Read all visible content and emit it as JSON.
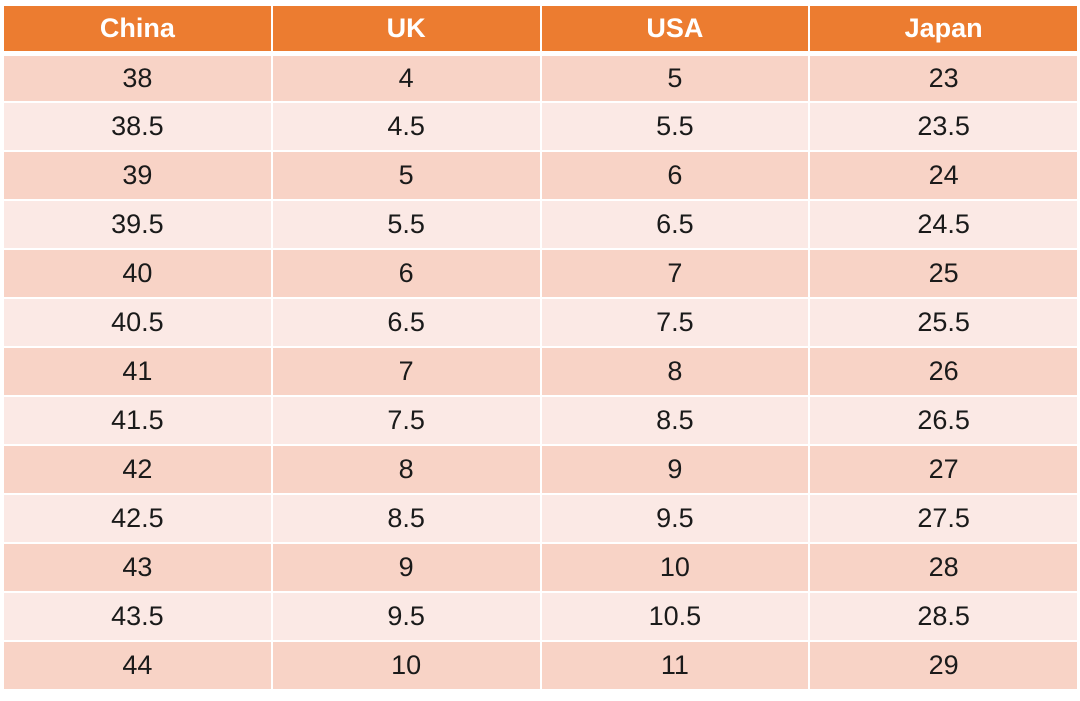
{
  "table": {
    "headers": [
      "China",
      "UK",
      "USA",
      "Japan"
    ],
    "rows": [
      [
        "38",
        "4",
        "5",
        "23"
      ],
      [
        "38.5",
        "4.5",
        "5.5",
        "23.5"
      ],
      [
        "39",
        "5",
        "6",
        "24"
      ],
      [
        "39.5",
        "5.5",
        "6.5",
        "24.5"
      ],
      [
        "40",
        "6",
        "7",
        "25"
      ],
      [
        "40.5",
        "6.5",
        "7.5",
        "25.5"
      ],
      [
        "41",
        "7",
        "8",
        "26"
      ],
      [
        "41.5",
        "7.5",
        "8.5",
        "26.5"
      ],
      [
        "42",
        "8",
        "9",
        "27"
      ],
      [
        "42.5",
        "8.5",
        "9.5",
        "27.5"
      ],
      [
        "43",
        "9",
        "10",
        "28"
      ],
      [
        "43.5",
        "9.5",
        "10.5",
        "28.5"
      ],
      [
        "44",
        "10",
        "11",
        "29"
      ]
    ]
  },
  "colors": {
    "header_bg": "#ec7c30",
    "header_text": "#ffffff",
    "row_odd_bg": "#f8d3c6",
    "row_even_bg": "#fbe9e5",
    "cell_text": "#1a1a1a"
  }
}
